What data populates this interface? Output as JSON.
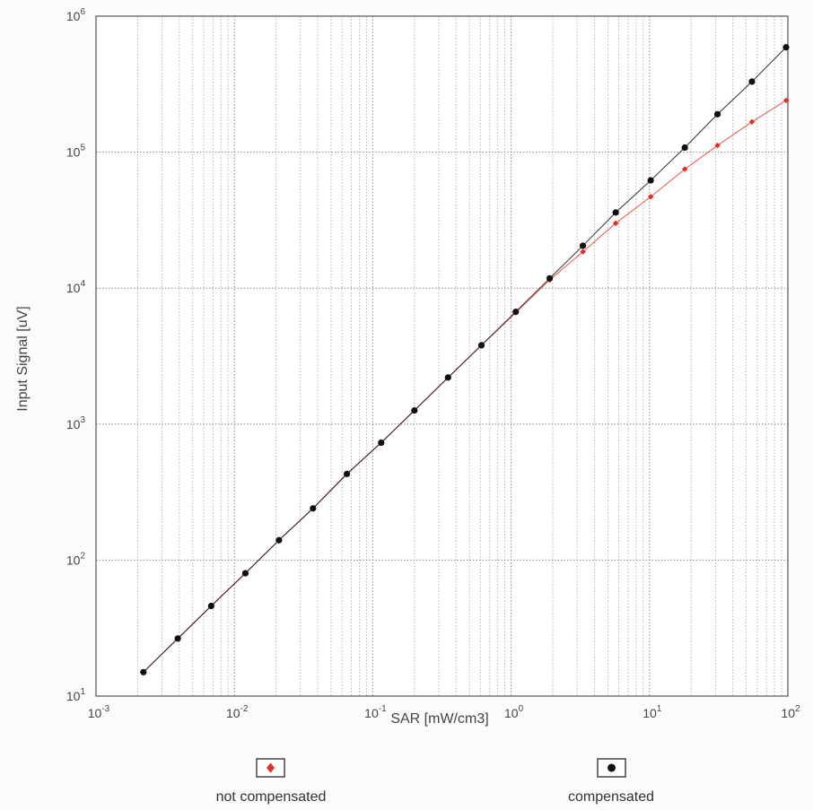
{
  "chart_data": {
    "type": "scatter",
    "xlabel": "SAR [mW/cm3]",
    "ylabel": "Input Signal [uV]",
    "x_scale": "log",
    "y_scale": "log",
    "xlim": [
      0.001,
      100
    ],
    "ylim": [
      10,
      1000000
    ],
    "grid": true,
    "legend_position": "bottom",
    "x_ticks": [
      {
        "value": 0.001,
        "base": "10",
        "exp": "-3"
      },
      {
        "value": 0.01,
        "base": "10",
        "exp": "-2"
      },
      {
        "value": 0.1,
        "base": "10",
        "exp": "-1"
      },
      {
        "value": 1,
        "base": "10",
        "exp": "0"
      },
      {
        "value": 10,
        "base": "10",
        "exp": "1"
      },
      {
        "value": 100,
        "base": "10",
        "exp": "2"
      }
    ],
    "y_ticks": [
      {
        "value": 10,
        "base": "10",
        "exp": "1"
      },
      {
        "value": 100,
        "base": "10",
        "exp": "2"
      },
      {
        "value": 1000,
        "base": "10",
        "exp": "3"
      },
      {
        "value": 10000,
        "base": "10",
        "exp": "4"
      },
      {
        "value": 100000,
        "base": "10",
        "exp": "5"
      },
      {
        "value": 1000000,
        "base": "10",
        "exp": "6"
      }
    ],
    "series": [
      {
        "name": "not compensated",
        "color": "#e03020",
        "marker": "diamond",
        "x": [
          0.0022,
          0.0039,
          0.0068,
          0.012,
          0.021,
          0.037,
          0.065,
          0.115,
          0.2,
          0.35,
          0.61,
          1.08,
          1.9,
          3.3,
          5.7,
          10.2,
          18.0,
          31.0,
          55.0,
          97.0
        ],
        "y": [
          15,
          26.5,
          46,
          80,
          140,
          240,
          430,
          730,
          1260,
          2200,
          3800,
          6600,
          11500,
          18500,
          30000,
          47000,
          75000,
          112000,
          167000,
          240000
        ]
      },
      {
        "name": "compensated",
        "color": "#111111",
        "marker": "circle",
        "x": [
          0.0022,
          0.0039,
          0.0068,
          0.012,
          0.021,
          0.037,
          0.065,
          0.115,
          0.2,
          0.35,
          0.61,
          1.08,
          1.9,
          3.3,
          5.7,
          10.2,
          18.0,
          31.0,
          55.0,
          97.0
        ],
        "y": [
          15,
          26.5,
          46,
          80,
          140,
          240,
          430,
          730,
          1260,
          2200,
          3800,
          6700,
          11800,
          20500,
          36000,
          62000,
          108000,
          190000,
          330000,
          590000
        ]
      }
    ]
  }
}
